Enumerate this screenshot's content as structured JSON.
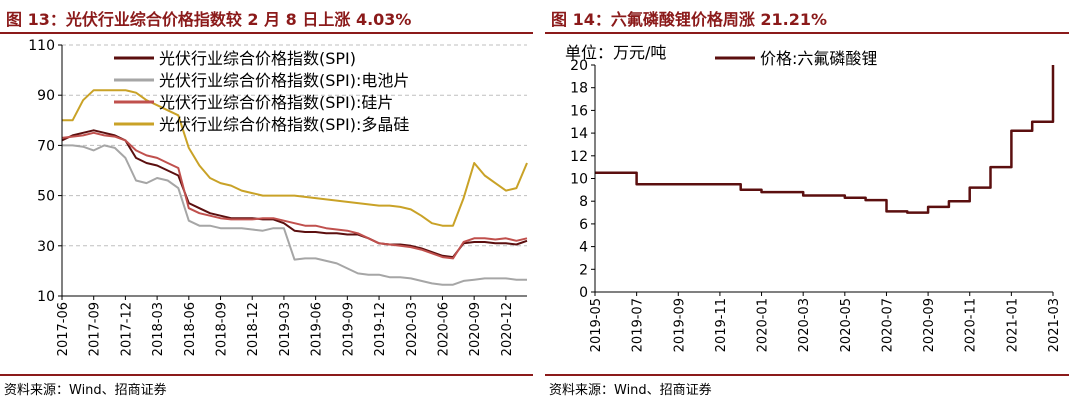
{
  "panels": {
    "left": {
      "title": "图 13：光伏行业综合价格指数较 2 月 8 日上涨 4.03%",
      "source": "资料来源：Wind、招商证券"
    },
    "right": {
      "title": "图 14：六氟磷酸锂价格周涨 21.21%",
      "source": "资料来源：Wind、招商证券"
    }
  },
  "chart_data": [
    {
      "type": "line",
      "ylim": [
        10,
        110
      ],
      "yticks": [
        10,
        30,
        50,
        70,
        90,
        110
      ],
      "xlim": [
        "2017-06",
        "2021-02"
      ],
      "xticks": [
        "2017-06",
        "2017-09",
        "2017-12",
        "2018-03",
        "2018-06",
        "2018-09",
        "2018-12",
        "2019-03",
        "2019-06",
        "2019-09",
        "2019-12",
        "2020-03",
        "2020-06",
        "2020-09",
        "2020-12"
      ],
      "grid": "horizontal-dashed",
      "legend": "top",
      "series": [
        {
          "name": "光伏行业综合价格指数(SPI)",
          "color": "#5b0f0f",
          "x": [
            "2017-06",
            "2017-07",
            "2017-08",
            "2017-09",
            "2017-10",
            "2017-11",
            "2017-12",
            "2018-01",
            "2018-02",
            "2018-03",
            "2018-04",
            "2018-05",
            "2018-06",
            "2018-07",
            "2018-08",
            "2018-09",
            "2018-10",
            "2018-11",
            "2018-12",
            "2019-01",
            "2019-02",
            "2019-03",
            "2019-04",
            "2019-05",
            "2019-06",
            "2019-07",
            "2019-08",
            "2019-09",
            "2019-10",
            "2019-11",
            "2019-12",
            "2020-01",
            "2020-02",
            "2020-03",
            "2020-04",
            "2020-05",
            "2020-06",
            "2020-07",
            "2020-08",
            "2020-09",
            "2020-10",
            "2020-11",
            "2020-12",
            "2021-01",
            "2021-02"
          ],
          "y": [
            72,
            74,
            75,
            76,
            75,
            74,
            72,
            65,
            63,
            62,
            60,
            58,
            47,
            45,
            43,
            42,
            41,
            41,
            41,
            40.5,
            40.5,
            39,
            36,
            35.5,
            35.5,
            35,
            35,
            34.5,
            34.5,
            33,
            31,
            30.5,
            30.5,
            30,
            29,
            27.5,
            26,
            25.5,
            31,
            31.5,
            31.5,
            31,
            31,
            30.5,
            32
          ]
        },
        {
          "name": "光伏行业综合价格指数(SPI):电池片",
          "color": "#a6a6a6",
          "x": [
            "2017-06",
            "2017-07",
            "2017-08",
            "2017-09",
            "2017-10",
            "2017-11",
            "2017-12",
            "2018-01",
            "2018-02",
            "2018-03",
            "2018-04",
            "2018-05",
            "2018-06",
            "2018-07",
            "2018-08",
            "2018-09",
            "2018-10",
            "2018-11",
            "2018-12",
            "2019-01",
            "2019-02",
            "2019-03",
            "2019-04",
            "2019-05",
            "2019-06",
            "2019-07",
            "2019-08",
            "2019-09",
            "2019-10",
            "2019-11",
            "2019-12",
            "2020-01",
            "2020-02",
            "2020-03",
            "2020-04",
            "2020-05",
            "2020-06",
            "2020-07",
            "2020-08",
            "2020-09",
            "2020-10",
            "2020-11",
            "2020-12",
            "2021-01",
            "2021-02"
          ],
          "y": [
            70,
            70,
            69.5,
            68,
            70,
            69,
            65,
            56,
            55,
            57,
            56,
            53,
            40,
            38,
            38,
            37,
            37,
            37,
            36.5,
            36,
            37,
            37,
            24.5,
            25,
            25,
            24,
            23,
            21,
            19,
            18.5,
            18.5,
            17.5,
            17.5,
            17,
            16,
            15,
            14.5,
            14.5,
            16,
            16.5,
            17,
            17,
            17,
            16.5,
            16.5
          ]
        },
        {
          "name": "光伏行业综合价格指数(SPI):硅片",
          "color": "#c0504d",
          "x": [
            "2017-06",
            "2017-07",
            "2017-08",
            "2017-09",
            "2017-10",
            "2017-11",
            "2017-12",
            "2018-01",
            "2018-02",
            "2018-03",
            "2018-04",
            "2018-05",
            "2018-06",
            "2018-07",
            "2018-08",
            "2018-09",
            "2018-10",
            "2018-11",
            "2018-12",
            "2019-01",
            "2019-02",
            "2019-03",
            "2019-04",
            "2019-05",
            "2019-06",
            "2019-07",
            "2019-08",
            "2019-09",
            "2019-10",
            "2019-11",
            "2019-12",
            "2020-01",
            "2020-02",
            "2020-03",
            "2020-04",
            "2020-05",
            "2020-06",
            "2020-07",
            "2020-08",
            "2020-09",
            "2020-10",
            "2020-11",
            "2020-12",
            "2021-01",
            "2021-02"
          ],
          "y": [
            73,
            73.5,
            74,
            75,
            74,
            73.5,
            72,
            68,
            66,
            65,
            63,
            61,
            45,
            43,
            42,
            41,
            40.5,
            40.5,
            40.5,
            41,
            41,
            40,
            39,
            38,
            38,
            37,
            36.5,
            36,
            35,
            33,
            31,
            30.5,
            30,
            29.5,
            28.5,
            27,
            25.5,
            25,
            31.5,
            33,
            33,
            32.5,
            33,
            32,
            33
          ]
        },
        {
          "name": "光伏行业综合价格指数(SPI):多晶硅",
          "color": "#c9a227",
          "x": [
            "2017-06",
            "2017-07",
            "2017-08",
            "2017-09",
            "2017-10",
            "2017-11",
            "2017-12",
            "2018-01",
            "2018-02",
            "2018-03",
            "2018-04",
            "2018-05",
            "2018-06",
            "2018-07",
            "2018-08",
            "2018-09",
            "2018-10",
            "2018-11",
            "2018-12",
            "2019-01",
            "2019-02",
            "2019-03",
            "2019-04",
            "2019-05",
            "2019-06",
            "2019-07",
            "2019-08",
            "2019-09",
            "2019-10",
            "2019-11",
            "2019-12",
            "2020-01",
            "2020-02",
            "2020-03",
            "2020-04",
            "2020-05",
            "2020-06",
            "2020-07",
            "2020-08",
            "2020-09",
            "2020-10",
            "2020-11",
            "2020-12",
            "2021-01",
            "2021-02"
          ],
          "y": [
            80,
            80,
            88,
            92,
            92,
            92,
            92,
            91,
            88,
            86,
            84,
            82,
            69,
            62,
            57,
            55,
            54,
            52,
            51,
            50,
            50,
            50,
            50,
            49.5,
            49,
            48.5,
            48,
            47.5,
            47,
            46.5,
            46,
            46,
            45.5,
            44.5,
            42,
            39,
            38,
            38,
            49,
            63,
            58,
            55,
            52,
            53,
            63
          ]
        }
      ]
    },
    {
      "type": "line",
      "ylim": [
        0,
        20
      ],
      "yticks": [
        0,
        2,
        4,
        6,
        8,
        10,
        12,
        14,
        16,
        18,
        20
      ],
      "xlim": [
        "2019-05",
        "2021-03"
      ],
      "xticks": [
        "2019-05",
        "2019-07",
        "2019-09",
        "2019-11",
        "2020-01",
        "2020-03",
        "2020-05",
        "2020-07",
        "2020-09",
        "2020-11",
        "2021-01",
        "2021-03"
      ],
      "ylabel": "单位：万元/吨",
      "grid": "none",
      "legend": "top",
      "series": [
        {
          "name": "价格:六氟磷酸锂",
          "color": "#5b0f0f",
          "x": [
            "2019-05",
            "2019-06",
            "2019-07",
            "2019-07",
            "2019-08",
            "2019-09",
            "2019-10",
            "2019-11",
            "2019-12",
            "2020-01",
            "2020-02",
            "2020-03",
            "2020-04",
            "2020-05",
            "2020-06",
            "2020-07",
            "2020-07",
            "2020-08",
            "2020-09",
            "2020-09",
            "2020-10",
            "2020-11",
            "2020-11",
            "2020-12",
            "2020-12",
            "2021-01",
            "2021-01",
            "2021-02",
            "2021-02",
            "2021-03",
            "2021-03"
          ],
          "y": [
            10.5,
            10.5,
            10.5,
            9.5,
            9.5,
            9.5,
            9.5,
            9.5,
            9.0,
            8.8,
            8.8,
            8.5,
            8.5,
            8.3,
            8.1,
            8.1,
            7.1,
            7.0,
            7.0,
            7.5,
            8.0,
            9.2,
            9.2,
            10.8,
            11.0,
            12.0,
            14.2,
            14.3,
            15.0,
            16.5,
            20.0
          ]
        }
      ]
    }
  ]
}
